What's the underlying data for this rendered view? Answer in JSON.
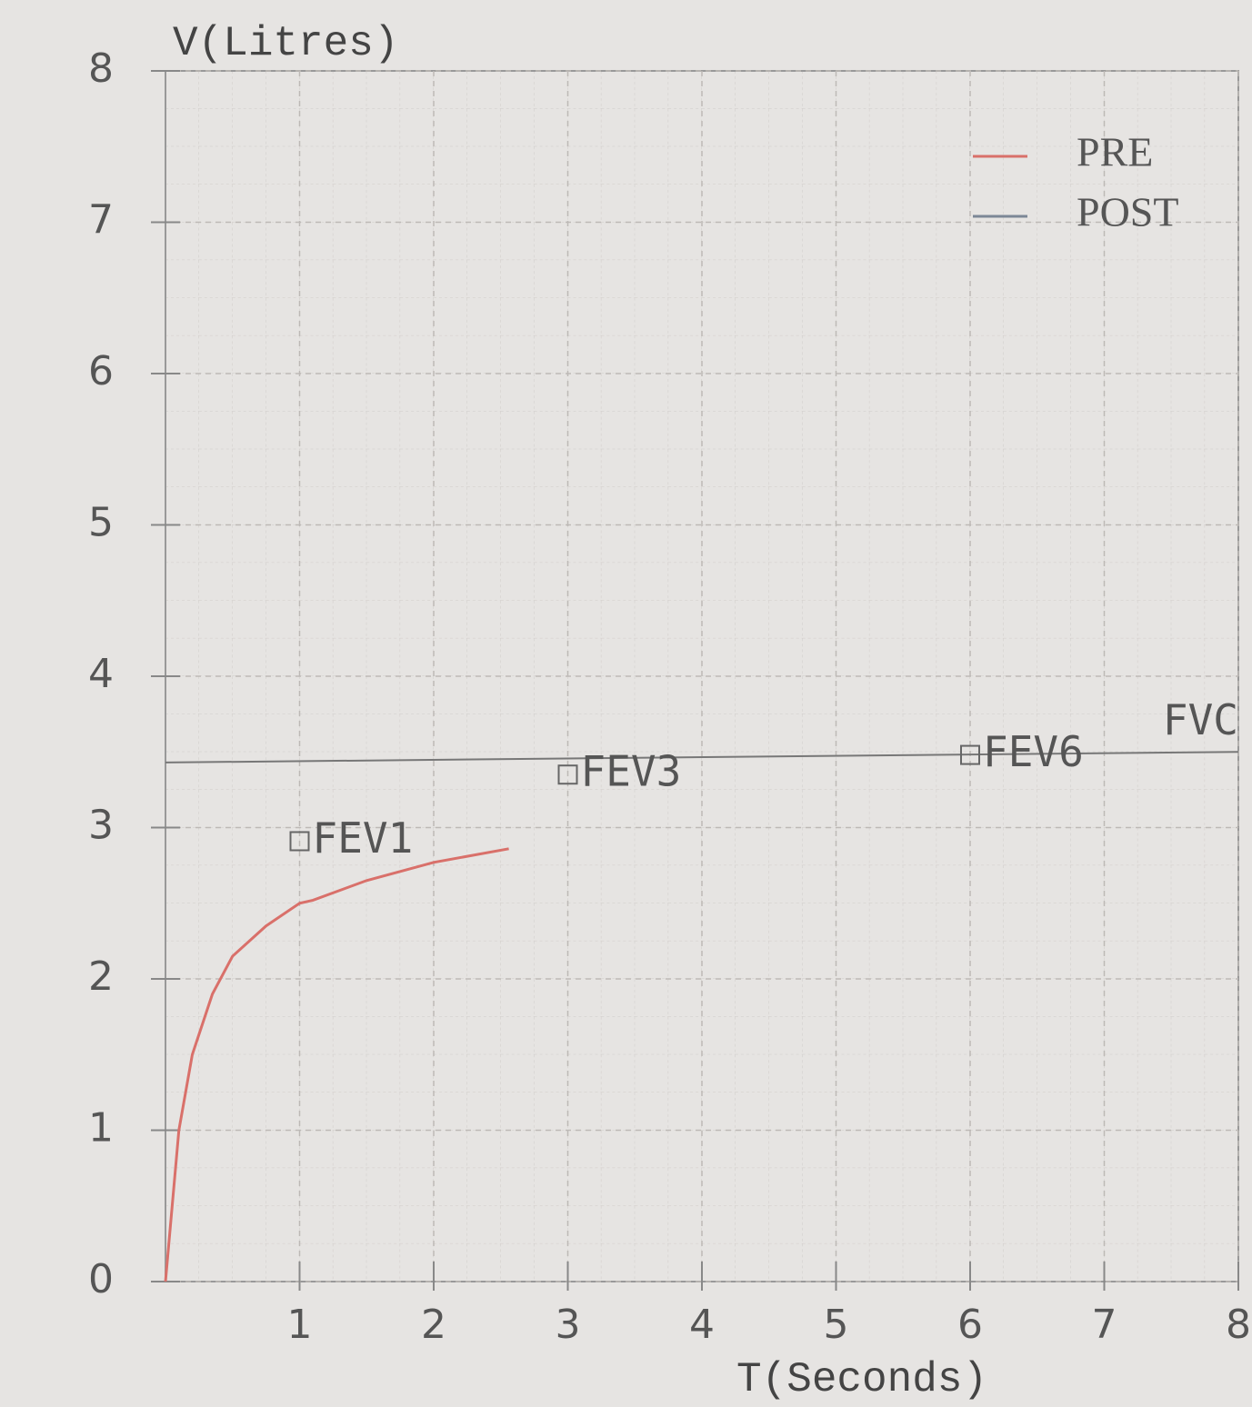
{
  "chart_data": {
    "type": "line",
    "ylabel": "V(Litres)",
    "xlabel": "T(Seconds)",
    "xlim": [
      0,
      8
    ],
    "ylim": [
      0,
      8
    ],
    "xticks": [
      1,
      2,
      3,
      4,
      5,
      6,
      7,
      8
    ],
    "yticks": [
      0,
      1,
      2,
      3,
      4,
      5,
      6,
      7,
      8
    ],
    "grid": true,
    "legend": "upper right",
    "series": [
      {
        "name": "PRE",
        "color": "#d9706a",
        "x": [
          0,
          0.05,
          0.1,
          0.2,
          0.35,
          0.5,
          0.75,
          1,
          1.1,
          1.5,
          2,
          2.56
        ],
        "values": [
          0,
          0.5,
          1,
          1.5,
          1.9,
          2.15,
          2.35,
          2.5,
          2.52,
          2.65,
          2.77,
          2.86
        ]
      },
      {
        "name": "POST",
        "color": "#7c8796",
        "x": [],
        "values": []
      }
    ],
    "reference_lines": [
      {
        "label": "FVC",
        "color": "#777777",
        "x": [
          0,
          8
        ],
        "values": [
          3.43,
          3.5
        ]
      }
    ],
    "annotations": [
      {
        "text": "FEV1",
        "x": 1,
        "y": 2.91
      },
      {
        "text": "FEV3",
        "x": 3,
        "y": 3.35
      },
      {
        "text": "FEV6",
        "x": 6,
        "y": 3.48
      }
    ]
  }
}
